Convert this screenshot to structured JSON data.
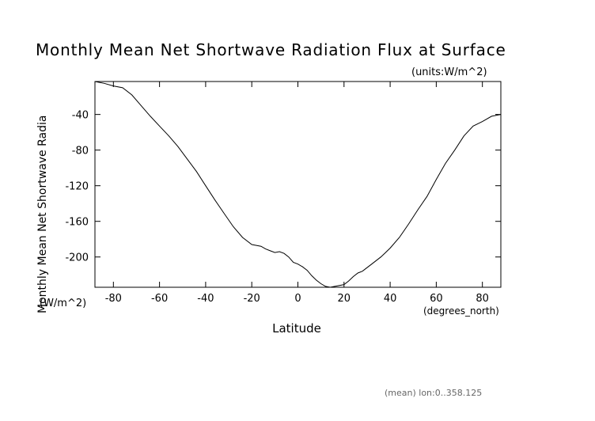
{
  "chart_data": {
    "type": "line",
    "title": "Monthly Mean Net Shortwave Radiation Flux at Surface",
    "units_label": "(units:W/m^2)",
    "xlabel": "Latitude",
    "xunits": "(degrees_north)",
    "ylabel": "Monthly Mean Net Shortwave Radia",
    "yunits": "(W/m^2)",
    "footer": "(mean) lon:0..358.125",
    "xlim": [
      -88,
      88
    ],
    "ylim": [
      -234,
      -3
    ],
    "xticks": [
      -80,
      -60,
      -40,
      -20,
      0,
      20,
      40,
      60,
      80
    ],
    "yticks": [
      -40,
      -80,
      -120,
      -160,
      -200
    ],
    "line_color": "#000000",
    "grid": false,
    "series": [
      {
        "x": [
          -88,
          -84,
          -80,
          -76,
          -72,
          -68,
          -64,
          -60,
          -56,
          -52,
          -48,
          -44,
          -40,
          -36,
          -32,
          -28,
          -24,
          -20,
          -18,
          -16,
          -14,
          -12,
          -10,
          -8,
          -6,
          -4,
          -2,
          0,
          2,
          4,
          6,
          8,
          10,
          12,
          14,
          16,
          18,
          20,
          22,
          24,
          26,
          28,
          30,
          32,
          34,
          36,
          38,
          40,
          44,
          48,
          52,
          56,
          60,
          64,
          68,
          72,
          76,
          80,
          84,
          88
        ],
        "y": [
          -3,
          -5,
          -8,
          -10,
          -18,
          -30,
          -42,
          -53,
          -64,
          -76,
          -90,
          -104,
          -120,
          -136,
          -151,
          -166,
          -178,
          -186,
          -187,
          -188,
          -191,
          -193,
          -195,
          -194,
          -196,
          -200,
          -206,
          -208,
          -211,
          -215,
          -221,
          -226,
          -230,
          -233,
          -234,
          -233,
          -232,
          -231,
          -227,
          -222,
          -218,
          -216,
          -212,
          -208,
          -204,
          -200,
          -195,
          -190,
          -178,
          -163,
          -147,
          -132,
          -113,
          -95,
          -80,
          -64,
          -53,
          -48,
          -42,
          -40
        ]
      }
    ]
  }
}
